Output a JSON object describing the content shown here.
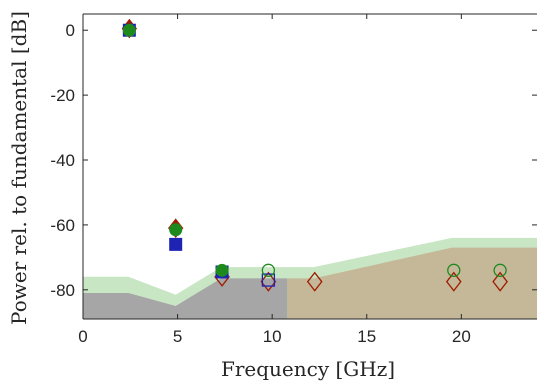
{
  "chart_data": {
    "type": "scatter",
    "title": "",
    "xlabel": "Frequency [GHz]",
    "ylabel": "Power rel. to fundamental [dB]",
    "xlim": [
      0,
      24
    ],
    "ylim": [
      -89,
      5
    ],
    "xticks": [
      0,
      5,
      10,
      15,
      20
    ],
    "yticks": [
      0,
      -20,
      -40,
      -60,
      -80
    ],
    "xtick_labels": [
      "0",
      "5",
      "10",
      "15",
      "20"
    ],
    "ytick_labels": [
      "0",
      "-20",
      "-40",
      "-60",
      "-80"
    ],
    "grid": false,
    "legend": "none",
    "areas": [
      {
        "color": "#c8e6c4",
        "points": [
          [
            0,
            -76
          ],
          [
            2.4,
            -76
          ],
          [
            4.9,
            -81.5
          ],
          [
            7.3,
            -73
          ],
          [
            9.7,
            -73
          ],
          [
            12.2,
            -73
          ],
          [
            19.5,
            -64
          ],
          [
            24,
            -64
          ],
          [
            24,
            -89
          ],
          [
            0,
            -89
          ]
        ]
      },
      {
        "color": "#a6a6a6",
        "points": [
          [
            0,
            -81
          ],
          [
            2.4,
            -81
          ],
          [
            4.9,
            -85
          ],
          [
            7.3,
            -76.5
          ],
          [
            9.7,
            -76.5
          ],
          [
            10.8,
            -76.5
          ],
          [
            10.8,
            -89
          ],
          [
            0,
            -89
          ]
        ]
      },
      {
        "color": "#c4b898",
        "points": [
          [
            10.8,
            -76.5
          ],
          [
            12.2,
            -76.5
          ],
          [
            19.5,
            -67
          ],
          [
            24,
            -67
          ],
          [
            24,
            -89
          ],
          [
            10.8,
            -89
          ]
        ]
      }
    ],
    "series": [
      {
        "marker": "diamond",
        "color": "#a01c00",
        "filled_points": [
          [
            2.45,
            0.5
          ],
          [
            4.9,
            -61
          ]
        ],
        "open_points": [
          [
            7.35,
            -76
          ],
          [
            9.8,
            -77.5
          ],
          [
            12.25,
            -77.5
          ],
          [
            19.6,
            -77.5
          ],
          [
            22.05,
            -77.5
          ]
        ]
      },
      {
        "marker": "square",
        "color": "#1f23b4",
        "filled_points": [
          [
            2.45,
            0
          ],
          [
            4.9,
            -66
          ],
          [
            7.35,
            -74.5
          ]
        ],
        "open_points": [
          [
            9.8,
            -77
          ]
        ]
      },
      {
        "marker": "circle",
        "color": "#1e8a1e",
        "filled_points": [
          [
            2.45,
            0
          ],
          [
            4.9,
            -61.5
          ],
          [
            7.35,
            -74
          ]
        ],
        "open_points": [
          [
            9.8,
            -74
          ],
          [
            19.6,
            -74
          ],
          [
            22.05,
            -74
          ]
        ]
      }
    ]
  }
}
